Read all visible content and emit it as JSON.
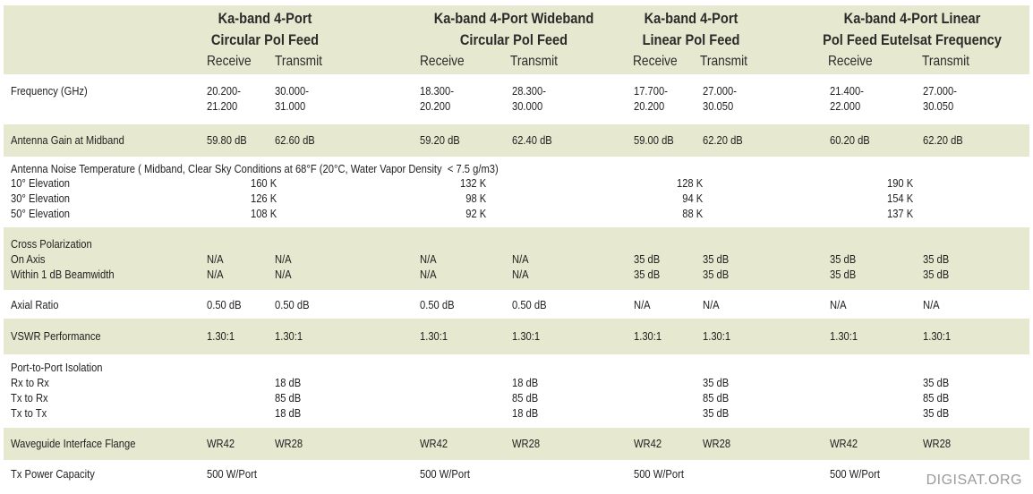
{
  "headers": {
    "groups": [
      {
        "line1": "Ka-band 4-Port",
        "line2": "Circular Pol Feed"
      },
      {
        "line1": "Ka-band 4-Port Wideband",
        "line2": "Circular Pol Feed"
      },
      {
        "line1": "Ka-band 4-Port",
        "line2": "Linear Pol Feed"
      },
      {
        "line1": "Ka-band 4-Port Linear",
        "line2": "Pol Feed Eutelsat Frequency"
      }
    ],
    "receive": "Receive",
    "transmit": "Transmit"
  },
  "rows": {
    "frequency": {
      "label": "Frequency (GHz)",
      "values": [
        "20.200-\n21.200",
        "30.000-\n31.000",
        "18.300-\n20.200",
        "28.300-\n30.000",
        "17.700-\n20.200",
        "27.000-\n30.050",
        "21.400-\n22.000",
        "27.000-\n30.050"
      ]
    },
    "gain": {
      "label": "Antenna Gain at Midband",
      "values": [
        "59.80 dB",
        "62.60 dB",
        "59.20 dB",
        "62.40 dB",
        "59.00 dB",
        "62.20 dB",
        "60.20 dB",
        "62.20 dB"
      ]
    },
    "noise": {
      "label": "Antenna Noise Temperature ( Midband, Clear Sky Conditions at 68°F (20°C, Water Vapor Density  < 7.5 g/m3)",
      "sublabels": "10° Elevation\n30° Elevation\n50° Elevation",
      "values": [
        "160 K\n126 K\n108 K",
        "132 K\n98 K\n92 K",
        "128 K\n94 K\n88 K",
        "190 K\n154 K\n137 K"
      ]
    },
    "cross": {
      "label": "Cross Polarization\nOn Axis\nWithin 1 dB Beamwidth",
      "values": [
        "\nN/A\nN/A",
        "\nN/A\nN/A",
        "\nN/A\nN/A",
        "\nN/A\nN/A",
        "\n35 dB\n35 dB",
        "\n35 dB\n35 dB",
        "\n35 dB\n35 dB",
        "\n35 dB\n35 dB"
      ]
    },
    "axial": {
      "label": "Axial Ratio",
      "values": [
        "0.50 dB",
        "0.50 dB",
        "0.50 dB",
        "0.50 dB",
        "N/A",
        "N/A",
        "N/A",
        "N/A"
      ]
    },
    "vswr": {
      "label": "VSWR Performance",
      "values": [
        "1.30:1",
        "1.30:1",
        "1.30:1",
        "1.30:1",
        "1.30:1",
        "1.30:1",
        "1.30:1",
        "1.30:1"
      ]
    },
    "isolation": {
      "label": "Port-to-Port Isolation\nRx to Rx\nTx to Rx\nTx to Tx",
      "values": [
        "",
        "\n18 dB\n85 dB\n18 dB",
        "",
        "\n18 dB\n85 dB\n18 dB",
        "",
        "\n35 dB\n85 dB\n35 dB",
        "",
        "\n35 dB\n85 dB\n35 dB"
      ]
    },
    "flange": {
      "label": "Waveguide Interface Flange",
      "values": [
        "WR42",
        "WR28",
        "WR42",
        "WR28",
        "WR42",
        "WR28",
        "WR42",
        "WR28"
      ]
    },
    "power": {
      "label": "Tx Power Capacity",
      "values": [
        "500 W/Port",
        "",
        "500 W/Port",
        "",
        "500 W/Port",
        "",
        "500 W/Port",
        ""
      ]
    }
  },
  "watermark": "DIGISAT.ORG",
  "colors": {
    "band": "#e6e8cf",
    "text": "#222222",
    "watermark": "#9a9a9a"
  }
}
